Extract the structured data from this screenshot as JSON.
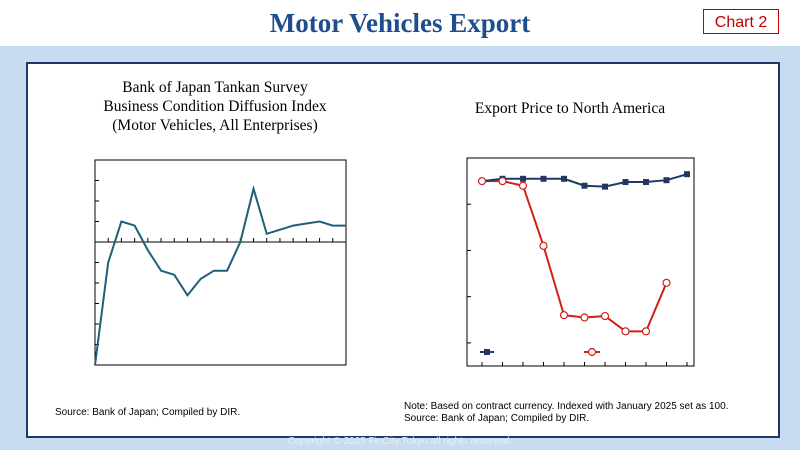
{
  "header": {
    "title": "Motor Vehicles Export",
    "badge": "Chart 2"
  },
  "left_chart": {
    "title_lines": [
      "Bank of Japan Tankan Survey",
      "Business Condition Diffusion Index",
      "(Motor Vehicles, All Enterprises)"
    ],
    "source": "Source: Bank of Japan; Compiled by DIR."
  },
  "right_chart": {
    "title": "Export Price to North America",
    "note": "Note: Based on contract currency. Indexed with January 2025 set as 100.",
    "source": "Source: Bank of Japan; Compiled by DIR."
  },
  "footer": {
    "copyright": "Copyright © 2025 FinCity.Tokyo all rights reserved."
  },
  "colors": {
    "title": "#1f4e8c",
    "badge": "#c00000",
    "band": "#c7dcf0",
    "frame": "#1f3864",
    "teal_line": "#1f5f7a",
    "navy_series": "#1f3864",
    "red_series": "#d0201a"
  },
  "chart_data": [
    {
      "type": "line",
      "title": "Bank of Japan Tankan Survey Business Condition Diffusion Index (Motor Vehicles, All Enterprises)",
      "ylim": [
        -30,
        20
      ],
      "grid": false,
      "series": [
        {
          "values": [
            -30,
            -5,
            5,
            4,
            -2,
            -7,
            -8,
            -13,
            -9,
            -7,
            -7,
            0,
            13,
            2,
            3,
            4,
            4.5,
            5,
            4,
            4
          ]
        }
      ]
    },
    {
      "type": "line",
      "title": "Export Price to North America",
      "ylim": [
        60,
        105
      ],
      "grid": false,
      "legend": "bottom",
      "series": [
        {
          "color": "#1f3864",
          "marker": "square",
          "values": [
            100,
            100.5,
            100.5,
            100.5,
            100.5,
            99,
            98.8,
            99.8,
            99.8,
            100.2,
            101.5
          ]
        },
        {
          "color": "#d0201a",
          "marker": "open-circle",
          "values": [
            100,
            100,
            99,
            86,
            71,
            70.5,
            70.8,
            67.5,
            67.5,
            78
          ]
        }
      ]
    }
  ]
}
